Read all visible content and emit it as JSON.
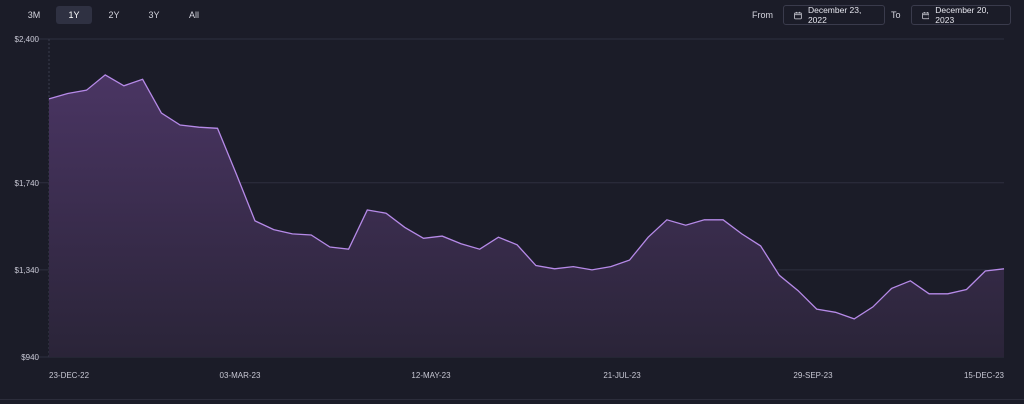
{
  "range_tabs": [
    {
      "label": "3M",
      "active": false
    },
    {
      "label": "1Y",
      "active": true
    },
    {
      "label": "2Y",
      "active": false
    },
    {
      "label": "3Y",
      "active": false
    },
    {
      "label": "All",
      "active": false
    }
  ],
  "date_range": {
    "from_label": "From",
    "from_value": "December 23, 2022",
    "to_label": "To",
    "to_value": "December 20, 2023"
  },
  "colors": {
    "line": "#b68ae8",
    "area_top": "#4a3563",
    "area_bottom": "#2a2438",
    "grid": "#2e2f3f",
    "background": "#1b1c28"
  },
  "chart_data": {
    "type": "area",
    "x_ticks": [
      "23-DEC-22",
      "03-MAR-23",
      "12-MAY-23",
      "21-JUL-23",
      "29-SEP-23",
      "15-DEC-23"
    ],
    "y_ticks": [
      "$2,400",
      "$1,740",
      "$1,340",
      "$940"
    ],
    "ylim": [
      940,
      2400
    ],
    "grid": true,
    "series": [
      {
        "values": [
          2125,
          2150,
          2165,
          2235,
          2185,
          2215,
          2060,
          2005,
          1995,
          1990,
          1780,
          1565,
          1525,
          1505,
          1500,
          1445,
          1435,
          1615,
          1600,
          1535,
          1485,
          1495,
          1460,
          1435,
          1490,
          1455,
          1360,
          1345,
          1355,
          1340,
          1355,
          1385,
          1490,
          1570,
          1545,
          1570,
          1570,
          1505,
          1450,
          1315,
          1245,
          1160,
          1145,
          1115,
          1170,
          1255,
          1290,
          1230,
          1230,
          1250,
          1335,
          1345
        ]
      }
    ]
  }
}
